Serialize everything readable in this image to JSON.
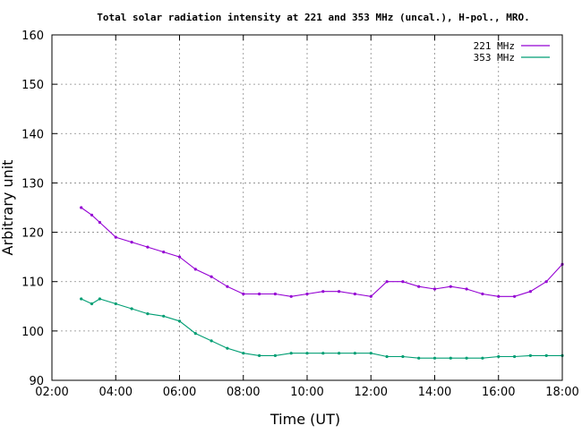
{
  "chart_data": {
    "type": "line",
    "title": "Total solar radiation intensity at 221 and 353 MHz (uncal.), H-pol., MRO.",
    "xlabel": "Time (UT)",
    "ylabel": "Arbitrary unit",
    "xlim": [
      "02:00",
      "18:00"
    ],
    "ylim": [
      90,
      160
    ],
    "x_ticks": [
      "02:00",
      "04:00",
      "06:00",
      "08:00",
      "10:00",
      "12:00",
      "14:00",
      "16:00",
      "18:00"
    ],
    "y_ticks": [
      90,
      100,
      110,
      120,
      130,
      140,
      150,
      160
    ],
    "grid": "dotted",
    "legend_position": "top-right",
    "x": [
      "02:55",
      "03:15",
      "03:30",
      "04:00",
      "04:30",
      "05:00",
      "05:30",
      "06:00",
      "06:30",
      "07:00",
      "07:30",
      "08:00",
      "08:30",
      "09:00",
      "09:30",
      "10:00",
      "10:30",
      "11:00",
      "11:30",
      "12:00",
      "12:30",
      "13:00",
      "13:30",
      "14:00",
      "14:30",
      "15:00",
      "15:30",
      "16:00",
      "16:30",
      "17:00",
      "17:30",
      "18:00"
    ],
    "series": [
      {
        "name": "221 MHz",
        "color": "#9400d3",
        "values": [
          125,
          123.5,
          122,
          119,
          118,
          117,
          116,
          115,
          112.5,
          111,
          109,
          107.5,
          107.5,
          107.5,
          107,
          107.5,
          108,
          108,
          107.5,
          107,
          110,
          110,
          109,
          108.5,
          109,
          108.5,
          107.5,
          107,
          107,
          108,
          110,
          113.5
        ]
      },
      {
        "name": "353 MHz",
        "color": "#009e73",
        "values": [
          106.5,
          105.5,
          106.5,
          105.5,
          104.5,
          103.5,
          103,
          102,
          99.5,
          98,
          96.5,
          95.5,
          95,
          95,
          95.5,
          95.5,
          95.5,
          95.5,
          95.5,
          95.5,
          94.8,
          94.8,
          94.5,
          94.5,
          94.5,
          94.5,
          94.5,
          94.8,
          94.8,
          95,
          95,
          95
        ]
      }
    ]
  }
}
